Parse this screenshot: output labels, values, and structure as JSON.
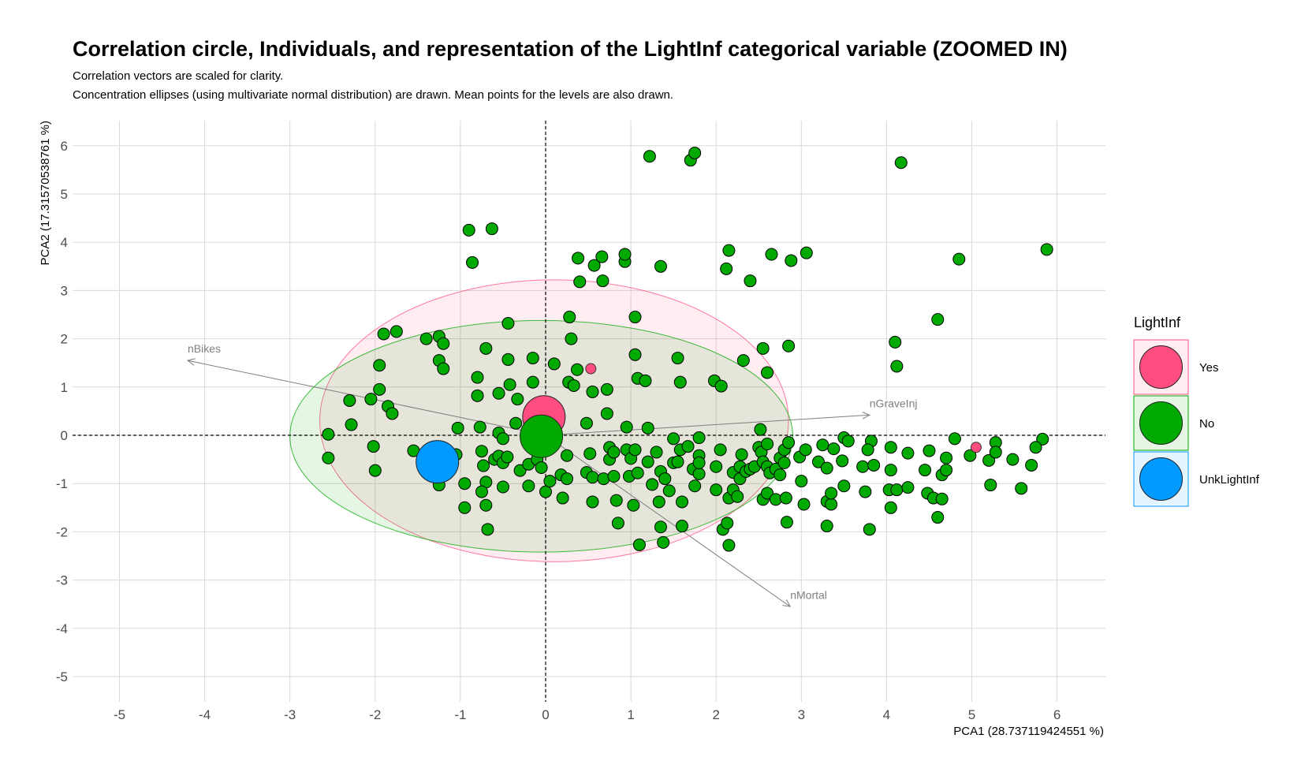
{
  "chart_data": {
    "type": "scatter",
    "title": "Correlation circle, Individuals, and representation of the LightInf categorical variable (ZOOMED IN)",
    "subtitle_lines": [
      "Correlation vectors are scaled for clarity.",
      "Concentration ellipses (using multivariate normal distribution) are drawn. Mean points for the levels are also drawn."
    ],
    "xlabel": "PCA1 (28.737119424551 %)",
    "ylabel": "PCA2 (17.3157053876​1 %)",
    "xlim": [
      -5.5,
      6.6
    ],
    "ylim": [
      -5.5,
      6.6
    ],
    "x_ticks": [
      "-5",
      "-4",
      "-3",
      "-2",
      "-1",
      "0",
      "1",
      "2",
      "3",
      "4",
      "5",
      "6"
    ],
    "y_ticks": [
      "-5",
      "-4",
      "-3",
      "-2",
      "-1",
      "0",
      "1",
      "2",
      "3",
      "4",
      "5",
      "6"
    ],
    "grid": true,
    "legend": {
      "title": "LightInf",
      "placement": "right"
    },
    "series": [
      {
        "name": "Yes",
        "color": "#FF4D80"
      },
      {
        "name": "No",
        "color": "#00AA00"
      },
      {
        "name": "UnkLightInf",
        "color": "#0099FF"
      }
    ],
    "points": [
      [
        -0.9,
        4.25
      ],
      [
        -0.63,
        4.28
      ],
      [
        -0.86,
        3.58
      ],
      [
        1.22,
        5.78
      ],
      [
        1.7,
        5.7
      ],
      [
        1.75,
        5.85
      ],
      [
        4.17,
        5.65
      ],
      [
        5.88,
        3.85
      ],
      [
        0.38,
        3.67
      ],
      [
        0.57,
        3.52
      ],
      [
        0.66,
        3.7
      ],
      [
        0.93,
        3.6
      ],
      [
        0.93,
        3.75
      ],
      [
        1.35,
        3.5
      ],
      [
        2.15,
        3.83
      ],
      [
        2.12,
        3.45
      ],
      [
        2.65,
        3.75
      ],
      [
        2.88,
        3.62
      ],
      [
        3.06,
        3.78
      ],
      [
        0.4,
        3.18
      ],
      [
        0.67,
        3.2
      ],
      [
        2.4,
        3.2
      ],
      [
        4.85,
        3.65
      ],
      [
        0.28,
        2.45
      ],
      [
        1.05,
        2.45
      ],
      [
        4.6,
        2.4
      ],
      [
        -0.44,
        2.32
      ],
      [
        -1.9,
        2.1
      ],
      [
        -1.75,
        2.15
      ],
      [
        -1.4,
        2.0
      ],
      [
        -1.25,
        2.05
      ],
      [
        -1.2,
        1.9
      ],
      [
        0.3,
        2.0
      ],
      [
        2.55,
        1.8
      ],
      [
        2.85,
        1.85
      ],
      [
        4.1,
        1.93
      ],
      [
        -0.7,
        1.8
      ],
      [
        -1.25,
        1.55
      ],
      [
        -1.2,
        1.38
      ],
      [
        -0.44,
        1.57
      ],
      [
        -0.15,
        1.6
      ],
      [
        0.1,
        1.48
      ],
      [
        0.37,
        1.36
      ],
      [
        1.05,
        1.67
      ],
      [
        1.55,
        1.6
      ],
      [
        2.32,
        1.55
      ],
      [
        2.6,
        1.3
      ],
      [
        4.12,
        1.43
      ],
      [
        -1.95,
        1.45
      ],
      [
        -0.8,
        1.2
      ],
      [
        -1.95,
        0.95
      ],
      [
        -2.3,
        0.72
      ],
      [
        -2.05,
        0.75
      ],
      [
        -1.85,
        0.6
      ],
      [
        -1.8,
        0.45
      ],
      [
        -0.8,
        0.82
      ],
      [
        -0.55,
        0.87
      ],
      [
        -0.42,
        1.05
      ],
      [
        -0.15,
        1.1
      ],
      [
        0.27,
        1.1
      ],
      [
        0.33,
        1.03
      ],
      [
        0.55,
        0.9
      ],
      [
        0.72,
        0.95
      ],
      [
        1.08,
        1.18
      ],
      [
        1.17,
        1.13
      ],
      [
        1.58,
        1.1
      ],
      [
        1.98,
        1.13
      ],
      [
        2.06,
        1.02
      ],
      [
        -0.33,
        0.75
      ],
      [
        0.72,
        0.45
      ],
      [
        0.48,
        0.25
      ],
      [
        -0.35,
        0.25
      ],
      [
        -1.03,
        0.15
      ],
      [
        -0.77,
        0.17
      ],
      [
        -2.28,
        0.22
      ],
      [
        -2.55,
        0.02
      ],
      [
        -0.55,
        0.05
      ],
      [
        -0.5,
        -0.07
      ],
      [
        0.95,
        0.17
      ],
      [
        1.2,
        0.15
      ],
      [
        2.52,
        0.12
      ],
      [
        3.5,
        -0.05
      ],
      [
        3.82,
        -0.12
      ],
      [
        4.8,
        -0.07
      ],
      [
        5.28,
        -0.15
      ],
      [
        5.83,
        -0.08
      ],
      [
        -2.55,
        -0.47
      ],
      [
        -2.02,
        -0.23
      ],
      [
        -2.0,
        -0.73
      ],
      [
        -1.55,
        -0.32
      ],
      [
        -1.25,
        -1.03
      ],
      [
        -1.05,
        -0.4
      ],
      [
        -0.75,
        -0.33
      ],
      [
        -0.73,
        -0.63
      ],
      [
        -0.7,
        -0.97
      ],
      [
        -0.6,
        -0.5
      ],
      [
        -0.55,
        -0.43
      ],
      [
        -0.5,
        -0.57
      ],
      [
        -0.45,
        -0.45
      ],
      [
        -0.3,
        -0.73
      ],
      [
        -0.2,
        -0.6
      ],
      [
        -0.1,
        -0.5
      ],
      [
        -0.05,
        -0.67
      ],
      [
        0.0,
        -1.17
      ],
      [
        0.05,
        -0.95
      ],
      [
        -0.2,
        -1.05
      ],
      [
        -0.5,
        -1.07
      ],
      [
        -0.75,
        -1.17
      ],
      [
        -0.95,
        -1.0
      ],
      [
        -0.95,
        -1.5
      ],
      [
        -0.7,
        -1.45
      ],
      [
        -0.68,
        -1.95
      ],
      [
        0.18,
        -0.82
      ],
      [
        0.25,
        -0.9
      ],
      [
        0.25,
        -0.42
      ],
      [
        0.2,
        -1.3
      ],
      [
        0.48,
        -0.77
      ],
      [
        0.52,
        -0.38
      ],
      [
        0.55,
        -0.87
      ],
      [
        0.55,
        -1.38
      ],
      [
        0.68,
        -0.9
      ],
      [
        0.75,
        -0.25
      ],
      [
        0.75,
        -0.5
      ],
      [
        0.8,
        -0.35
      ],
      [
        0.8,
        -0.85
      ],
      [
        0.83,
        -1.35
      ],
      [
        0.85,
        -1.82
      ],
      [
        0.95,
        -0.3
      ],
      [
        0.98,
        -0.85
      ],
      [
        1.0,
        -0.48
      ],
      [
        1.05,
        -0.3
      ],
      [
        1.03,
        -1.45
      ],
      [
        1.08,
        -0.78
      ],
      [
        1.1,
        -2.27
      ],
      [
        1.2,
        -0.55
      ],
      [
        1.25,
        -1.02
      ],
      [
        1.3,
        -0.35
      ],
      [
        1.35,
        -0.75
      ],
      [
        1.33,
        -1.38
      ],
      [
        1.35,
        -1.9
      ],
      [
        1.38,
        -2.22
      ],
      [
        1.4,
        -0.9
      ],
      [
        1.45,
        -1.15
      ],
      [
        1.5,
        -0.07
      ],
      [
        1.5,
        -0.57
      ],
      [
        1.55,
        -0.55
      ],
      [
        1.58,
        -0.3
      ],
      [
        1.6,
        -1.38
      ],
      [
        1.6,
        -1.88
      ],
      [
        1.67,
        -0.23
      ],
      [
        1.73,
        -0.7
      ],
      [
        1.75,
        -1.05
      ],
      [
        1.8,
        -0.42
      ],
      [
        1.8,
        -0.8
      ],
      [
        1.8,
        -0.05
      ],
      [
        1.8,
        -0.57
      ],
      [
        2.0,
        -1.13
      ],
      [
        2.0,
        -0.65
      ],
      [
        2.05,
        -0.3
      ],
      [
        2.08,
        -1.95
      ],
      [
        2.13,
        -1.82
      ],
      [
        2.15,
        -2.28
      ],
      [
        2.15,
        -1.3
      ],
      [
        2.2,
        -1.13
      ],
      [
        2.2,
        -0.77
      ],
      [
        2.25,
        -1.27
      ],
      [
        2.28,
        -0.65
      ],
      [
        2.28,
        -0.9
      ],
      [
        2.3,
        -0.4
      ],
      [
        2.35,
        -0.75
      ],
      [
        2.4,
        -0.7
      ],
      [
        2.45,
        -0.65
      ],
      [
        2.5,
        -0.25
      ],
      [
        2.53,
        -0.35
      ],
      [
        2.55,
        -0.55
      ],
      [
        2.55,
        -1.33
      ],
      [
        2.6,
        -0.18
      ],
      [
        2.6,
        -0.65
      ],
      [
        2.6,
        -1.2
      ],
      [
        2.63,
        -0.78
      ],
      [
        2.7,
        -0.7
      ],
      [
        2.7,
        -1.33
      ],
      [
        2.75,
        -0.47
      ],
      [
        2.75,
        -0.82
      ],
      [
        2.8,
        -0.57
      ],
      [
        2.8,
        -0.3
      ],
      [
        2.82,
        -1.3
      ],
      [
        2.83,
        -1.8
      ],
      [
        2.85,
        -0.15
      ],
      [
        2.98,
        -0.45
      ],
      [
        3.0,
        -0.95
      ],
      [
        3.03,
        -1.43
      ],
      [
        3.05,
        -0.3
      ],
      [
        3.2,
        -0.55
      ],
      [
        3.25,
        -0.2
      ],
      [
        3.3,
        -0.68
      ],
      [
        3.3,
        -1.37
      ],
      [
        3.3,
        -1.88
      ],
      [
        3.35,
        -1.43
      ],
      [
        3.35,
        -1.2
      ],
      [
        3.38,
        -0.28
      ],
      [
        3.48,
        -0.53
      ],
      [
        3.5,
        -1.05
      ],
      [
        3.55,
        -0.12
      ],
      [
        3.72,
        -0.65
      ],
      [
        3.75,
        -1.17
      ],
      [
        3.78,
        -0.3
      ],
      [
        3.8,
        -1.95
      ],
      [
        3.85,
        -0.62
      ],
      [
        4.03,
        -1.13
      ],
      [
        4.05,
        -0.25
      ],
      [
        4.05,
        -0.72
      ],
      [
        4.05,
        -1.5
      ],
      [
        4.12,
        -1.13
      ],
      [
        4.25,
        -0.37
      ],
      [
        4.25,
        -1.08
      ],
      [
        4.45,
        -0.72
      ],
      [
        4.48,
        -1.2
      ],
      [
        4.5,
        -0.32
      ],
      [
        4.55,
        -1.3
      ],
      [
        4.6,
        -1.7
      ],
      [
        4.65,
        -0.82
      ],
      [
        4.65,
        -1.32
      ],
      [
        4.7,
        -0.47
      ],
      [
        4.7,
        -0.72
      ],
      [
        4.98,
        -0.42
      ],
      [
        5.2,
        -0.52
      ],
      [
        5.22,
        -1.03
      ],
      [
        5.28,
        -0.35
      ],
      [
        5.48,
        -0.5
      ],
      [
        5.58,
        -1.1
      ],
      [
        5.7,
        -0.62
      ],
      [
        5.75,
        -0.25
      ]
    ],
    "yes_points": [
      [
        0.53,
        1.38
      ],
      [
        5.05,
        -0.25
      ]
    ],
    "means": [
      {
        "level": "Yes",
        "x": -0.02,
        "y": 0.38
      },
      {
        "level": "No",
        "x": -0.05,
        "y": -0.02
      },
      {
        "level": "UnkLightInf",
        "x": -1.27,
        "y": -0.55
      }
    ],
    "ellipses": [
      {
        "level": "Yes",
        "center": [
          0.1,
          0.3
        ],
        "radii": [
          2.75,
          2.92
        ],
        "angle_deg": 0
      },
      {
        "level": "No",
        "center": [
          -0.05,
          -0.02
        ],
        "radii": [
          2.95,
          2.4
        ],
        "angle_deg": 0
      }
    ],
    "vectors": [
      {
        "label": "nBikes",
        "x": -4.2,
        "y": 1.55
      },
      {
        "label": "nGraveInj",
        "x": 3.8,
        "y": 0.42
      },
      {
        "label": "nMortal",
        "x": 2.87,
        "y": -3.55
      }
    ]
  }
}
